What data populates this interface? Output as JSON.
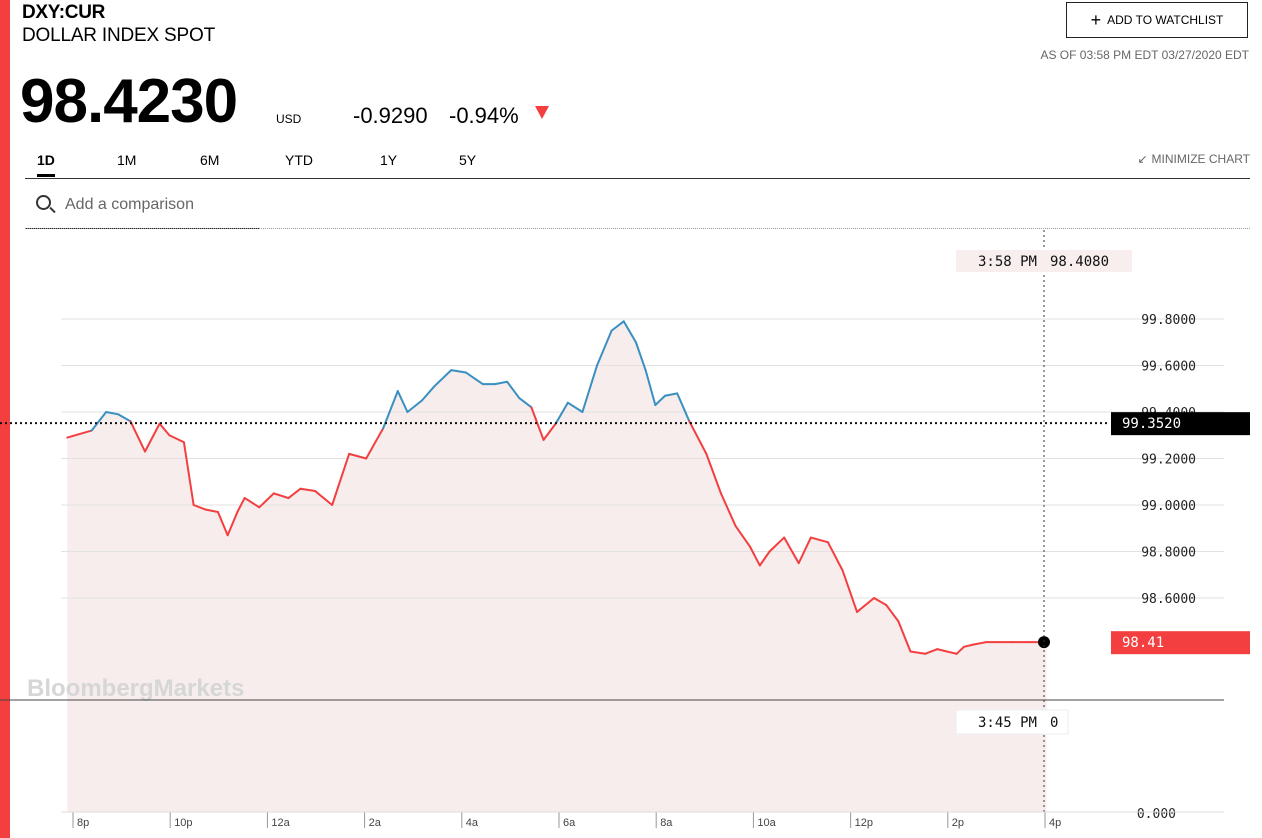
{
  "header": {
    "ticker": "DXY:CUR",
    "name": "DOLLAR INDEX SPOT",
    "price": "98.4230",
    "currency": "USD",
    "change": "-0.9290",
    "change_pct": "-0.94%",
    "watchlist_label": "ADD TO WATCHLIST",
    "as_of": "AS OF 03:58 PM EDT 03/27/2020 EDT"
  },
  "tabs": [
    "1D",
    "1M",
    "6M",
    "YTD",
    "1Y",
    "5Y"
  ],
  "active_tab": "1D",
  "minimize_label": "MINIMIZE CHART",
  "search": {
    "placeholder": "Add a comparison"
  },
  "icons": [
    "plus-icon",
    "down-arrow-icon",
    "minimize-icon",
    "search-icon"
  ],
  "colors": {
    "accent": "#f33f3f",
    "up": "#3a8fc1",
    "down": "#f33f3f",
    "area_fill": "#f7eded"
  },
  "watermark": "BloombergMarkets",
  "chart_data": {
    "type": "line",
    "x_tick_labels": [
      "8p",
      "10p",
      "12a",
      "2a",
      "4a",
      "6a",
      "8a",
      "10a",
      "12p",
      "2p",
      "4p"
    ],
    "y_tick_labels": [
      "99.8000",
      "99.6000",
      "99.4000",
      "99.2000",
      "99.0000",
      "98.8000",
      "98.6000",
      "0.000"
    ],
    "y_ticks": [
      99.8,
      99.6,
      99.4,
      99.2,
      99.0,
      98.8,
      98.6
    ],
    "previous_close": 99.352,
    "previous_close_label": "99.3520",
    "last_value": 98.41,
    "last_value_label": "98.41",
    "crosshair": {
      "time": "3:58 PM",
      "value": "98.4080"
    },
    "volume_tip": {
      "time": "3:45 PM",
      "value": "0"
    },
    "series": [
      {
        "x_hours_since_8p": [
          -0.2,
          0.3,
          0.6,
          0.85,
          1.1,
          1.4,
          1.7,
          1.9,
          2.2,
          2.4,
          2.65,
          2.9,
          3.1,
          3.3,
          3.45,
          3.75,
          4.05,
          4.35,
          4.6,
          4.9,
          5.25,
          5.6,
          5.95,
          6.3,
          6.6,
          6.8,
          7.1,
          7.35,
          7.7,
          8.0,
          8.35,
          8.6,
          8.85,
          9.1,
          9.35,
          9.6,
          9.85,
          10.1,
          10.4,
          10.7,
          11.0,
          11.25,
          11.5,
          11.7,
          11.9,
          12.1,
          12.35,
          12.6,
          12.95,
          13.25,
          13.55,
          13.85,
          14.05,
          14.25,
          14.55,
          14.85,
          15.1,
          15.45,
          15.75,
          16.05,
          16.4,
          16.65,
          16.9,
          17.15,
          17.45,
          17.7,
          17.9,
          18.1,
          18.25,
          18.45,
          18.7,
          18.95,
          19.25,
          19.55,
          19.85,
          19.95
        ],
        "values": [
          99.29,
          99.32,
          99.4,
          99.39,
          99.36,
          99.23,
          99.35,
          99.3,
          99.27,
          99.0,
          98.98,
          98.97,
          98.87,
          98.97,
          99.03,
          98.99,
          99.05,
          99.03,
          99.07,
          99.06,
          99.0,
          99.22,
          99.2,
          99.33,
          99.49,
          99.4,
          99.45,
          99.51,
          99.58,
          99.57,
          99.52,
          99.52,
          99.53,
          99.46,
          99.42,
          99.28,
          99.35,
          99.44,
          99.4,
          99.6,
          99.75,
          99.79,
          99.7,
          99.58,
          99.43,
          99.47,
          99.48,
          99.36,
          99.22,
          99.05,
          98.91,
          98.82,
          98.74,
          98.8,
          98.86,
          98.75,
          98.86,
          98.84,
          98.72,
          98.54,
          98.6,
          98.57,
          98.5,
          98.37,
          98.36,
          98.38,
          98.37,
          98.36,
          98.39,
          98.4,
          98.41,
          98.41,
          98.41,
          98.41,
          98.41,
          98.41
        ]
      }
    ],
    "grid": true
  }
}
